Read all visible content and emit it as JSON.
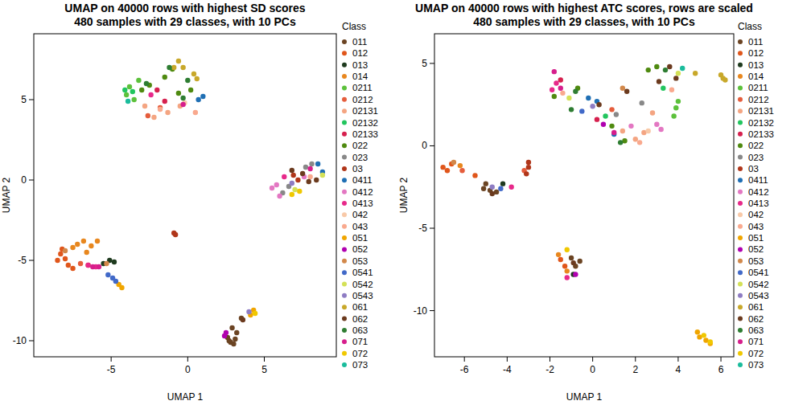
{
  "chart_data": [
    {
      "type": "scatter",
      "title": "UMAP on 40000 rows with highest SD scores",
      "subtitle": "480 samples with 29 classes, with 10 PCs",
      "x_label": "UMAP 1",
      "y_label": "UMAP 2",
      "legend_title": "Class",
      "legend": "right",
      "xlim": [
        -10.05,
        9.7
      ],
      "ylim": [
        -11,
        9.1
      ],
      "xticks": [
        -5,
        0,
        5
      ],
      "yticks": [
        -10,
        -5,
        0,
        5
      ],
      "series": [
        {
          "name": "011",
          "color": "#6B4423",
          "x": [
            2.6,
            2.8,
            3.0,
            3.2,
            2.9,
            3.5,
            2.7,
            3.1
          ],
          "values": [
            -9.8,
            -10.1,
            -10.2,
            -9.5,
            -9.2,
            -8.6,
            -10.0,
            -9.9
          ]
        },
        {
          "name": "012",
          "color": "#E0561B",
          "x": [
            -8.3,
            -8.0,
            -7.8,
            -8.5,
            -7.5,
            -8.2
          ],
          "values": [
            -4.6,
            -4.9,
            -5.3,
            -5.0,
            -5.5,
            -4.3
          ]
        },
        {
          "name": "013",
          "color": "#1E3A1E",
          "x": [
            -5.1,
            -4.8,
            -5.5
          ],
          "values": [
            -5.0,
            -5.1,
            -5.2
          ]
        },
        {
          "name": "014",
          "color": "#E8871E",
          "x": [
            -7.2,
            -6.8,
            -6.3,
            -7.5,
            -5.9,
            -6.6
          ],
          "values": [
            -4.0,
            -3.8,
            -4.1,
            -4.2,
            -3.8,
            -4.5
          ]
        },
        {
          "name": "0211",
          "color": "#5CC13B",
          "x": [
            -4.0,
            -3.8,
            -3.5,
            -3.2
          ],
          "values": [
            5.3,
            5.8,
            5.0,
            6.2
          ]
        },
        {
          "name": "0212",
          "color": "#E55D3C",
          "x": [
            -7.0,
            -6.5,
            -2.6,
            -1.8
          ],
          "values": [
            -5.2,
            -5.3,
            4.0,
            4.5
          ]
        },
        {
          "name": "02131",
          "color": "#F4A582",
          "x": [
            -2.8,
            -2.2,
            -1.3,
            -0.5
          ],
          "values": [
            4.6,
            3.9,
            4.2,
            4.6
          ]
        },
        {
          "name": "02132",
          "color": "#22C55E",
          "x": [
            -3.6,
            -4.1
          ],
          "values": [
            5.5,
            5.6
          ]
        },
        {
          "name": "02133",
          "color": "#D6204E",
          "x": [
            -2.0,
            -1.5
          ],
          "values": [
            5.6,
            4.9
          ]
        },
        {
          "name": "022",
          "color": "#4F8A10",
          "x": [
            -3.0,
            -2.5,
            -1.0,
            -0.6,
            0.2,
            -1.5
          ],
          "values": [
            5.6,
            5.9,
            6.9,
            5.4,
            5.6,
            6.4
          ]
        },
        {
          "name": "023",
          "color": "#888888",
          "x": [
            6.2,
            6.6,
            8.1,
            7.7
          ],
          "values": [
            -0.8,
            -0.4,
            1.0,
            0.8
          ]
        },
        {
          "name": "03",
          "color": "#B0361A",
          "x": [
            -0.9,
            -0.8,
            7.2,
            6.9
          ],
          "values": [
            -3.3,
            -3.4,
            0.0,
            0.3
          ]
        },
        {
          "name": "0411",
          "color": "#1F6FB4",
          "x": [
            1.0,
            0.7,
            8.5,
            8.8
          ],
          "values": [
            5.2,
            5.0,
            1.0,
            0.5
          ]
        },
        {
          "name": "0412",
          "color": "#E377C2",
          "x": [
            5.5,
            5.8,
            6.0,
            7.6
          ],
          "values": [
            -0.5,
            -0.3,
            -1.0,
            0.2
          ]
        },
        {
          "name": "0413",
          "color": "#E7298A",
          "x": [
            -6.5,
            -6.0,
            -2.4,
            6.3
          ],
          "values": [
            -5.3,
            -5.4,
            5.3,
            0.2
          ]
        },
        {
          "name": "042",
          "color": "#F8C9A8",
          "x": [
            -0.2
          ],
          "values": [
            4.8
          ]
        },
        {
          "name": "043",
          "color": "#F9A98E",
          "x": [
            -1.8,
            0.5,
            8.0
          ],
          "values": [
            4.4,
            4.2,
            0.2
          ]
        },
        {
          "name": "051",
          "color": "#F0A500",
          "x": [
            -4.5,
            -4.3,
            4.1,
            4.3
          ],
          "values": [
            -6.5,
            -6.7,
            -8.4,
            -8.1
          ]
        },
        {
          "name": "052",
          "color": "#B000B0",
          "x": [
            2.5,
            2.4
          ],
          "values": [
            -9.5,
            -9.7
          ]
        },
        {
          "name": "053",
          "color": "#D2884A",
          "x": [
            -8.0,
            -5.3
          ],
          "values": [
            -4.4,
            -5.2
          ]
        },
        {
          "name": "0541",
          "color": "#4169C8",
          "x": [
            -4.9,
            -5.2,
            -4.7
          ],
          "values": [
            -6.1,
            -5.9,
            -6.3
          ]
        },
        {
          "name": "0542",
          "color": "#D4E157",
          "x": [
            7.0,
            8.8
          ],
          "values": [
            -0.6,
            0.3
          ]
        },
        {
          "name": "0543",
          "color": "#8E7CC3",
          "x": [
            4.0,
            6.8
          ],
          "values": [
            -8.2,
            -0.2
          ]
        },
        {
          "name": "061",
          "color": "#C8A82A",
          "x": [
            -0.6,
            -0.3,
            0.4,
            0.6,
            -0.9
          ],
          "values": [
            7.4,
            7.0,
            6.6,
            6.3,
            7.0
          ]
        },
        {
          "name": "062",
          "color": "#6B3A1E",
          "x": [
            6.8,
            7.5,
            7.9,
            8.4,
            3.6
          ],
          "values": [
            0.6,
            0.4,
            -0.1,
            0.0,
            -8.7
          ]
        },
        {
          "name": "063",
          "color": "#2E7D32",
          "x": [
            -1.2,
            -2.7,
            0.0,
            -0.3
          ],
          "values": [
            7.0,
            6.0,
            6.2,
            5.1
          ]
        },
        {
          "name": "071",
          "color": "#D61E8C",
          "x": [
            -5.8,
            -6.2,
            -0.3,
            8.0
          ],
          "values": [
            -5.4,
            -5.4,
            4.7,
            0.7
          ]
        },
        {
          "name": "072",
          "color": "#F0C800",
          "x": [
            6.8,
            7.3,
            4.4
          ],
          "values": [
            -0.9,
            -0.7,
            -8.3
          ]
        },
        {
          "name": "073",
          "color": "#1ABC9C",
          "x": [
            -3.9
          ],
          "values": [
            4.9
          ]
        }
      ]
    },
    {
      "type": "scatter",
      "title": "UMAP on 40000 rows with highest ATC scores, rows are scaled",
      "subtitle": "480 samples with 29 classes, with 10 PCs",
      "x_label": "UMAP 1",
      "y_label": "UMAP 2",
      "legend_title": "Class",
      "legend": "right",
      "xlim": [
        -7.4,
        6.6
      ],
      "ylim": [
        -12.8,
        6.8
      ],
      "xticks": [
        -6,
        -4,
        -2,
        0,
        2,
        4,
        6
      ],
      "yticks": [
        -10,
        -5,
        0,
        5
      ],
      "series": [
        {
          "name": "011",
          "color": "#6B4423",
          "x": [
            -4.8,
            -4.5,
            -5.1,
            -0.8,
            -0.6,
            -1.0,
            -5.0
          ],
          "values": [
            -2.7,
            -2.8,
            -2.6,
            -7.3,
            -7.0,
            -6.8,
            -2.3
          ]
        },
        {
          "name": "012",
          "color": "#E0561B",
          "x": [
            -6.6,
            -7.0,
            -6.8,
            -1.5,
            -1.3,
            -5.5
          ],
          "values": [
            -1.1,
            -1.3,
            -1.5,
            -6.9,
            -7.3,
            -1.8
          ]
        },
        {
          "name": "013",
          "color": "#1E3A1E",
          "x": [
            -4.2,
            -0.9
          ],
          "values": [
            -2.3,
            -7.8
          ]
        },
        {
          "name": "014",
          "color": "#E8871E",
          "x": [
            -6.2,
            -1.6,
            -1.2
          ],
          "values": [
            -1.2,
            -6.6,
            -7.6
          ]
        },
        {
          "name": "0211",
          "color": "#5CC13B",
          "x": [
            3.9,
            4.0,
            3.8
          ],
          "values": [
            2.3,
            2.7,
            1.8
          ]
        },
        {
          "name": "0212",
          "color": "#E55D3C",
          "x": [
            -6.1,
            -3.2,
            0.9
          ],
          "values": [
            -1.5,
            -1.5,
            2.2
          ]
        },
        {
          "name": "02131",
          "color": "#F4A582",
          "x": [
            2.4,
            2.0,
            1.4,
            2.8
          ],
          "values": [
            0.8,
            0.4,
            0.9,
            2.0
          ]
        },
        {
          "name": "02132",
          "color": "#22C55E",
          "x": [
            3.3,
            0.6
          ],
          "values": [
            3.5,
            1.8
          ]
        },
        {
          "name": "02133",
          "color": "#D6204E",
          "x": [
            -1.5,
            0.2
          ],
          "values": [
            4.0,
            1.6
          ]
        },
        {
          "name": "022",
          "color": "#4F8A10",
          "x": [
            -0.7,
            0.9,
            1.5,
            3.0,
            2.6,
            -1.8
          ],
          "values": [
            3.5,
            1.2,
            0.3,
            4.8,
            4.6,
            3.0
          ]
        },
        {
          "name": "023",
          "color": "#888888",
          "x": [
            1.1,
            2.3
          ],
          "values": [
            1.9,
            2.6
          ]
        },
        {
          "name": "03",
          "color": "#B0361A",
          "x": [
            -3.0,
            -3.1,
            -3.0
          ],
          "values": [
            -1.3,
            -1.7,
            -1.0
          ]
        },
        {
          "name": "0411",
          "color": "#1F6FB4",
          "x": [
            -0.2,
            0.2,
            1.0
          ],
          "values": [
            2.9,
            2.7,
            0.7
          ]
        },
        {
          "name": "0412",
          "color": "#E377C2",
          "x": [
            1.8,
            3.0,
            3.2
          ],
          "values": [
            1.2,
            1.3,
            1.0
          ]
        },
        {
          "name": "0413",
          "color": "#E7298A",
          "x": [
            -1.7,
            -1.9,
            -3.8,
            -1.2
          ],
          "values": [
            3.8,
            3.4,
            -2.5,
            -8.0
          ]
        },
        {
          "name": "042",
          "color": "#F8C9A8",
          "x": [
            2.6
          ],
          "values": [
            0.9
          ]
        },
        {
          "name": "043",
          "color": "#F9A98E",
          "x": [
            -1.4,
            2.2,
            3.7
          ],
          "values": [
            3.2,
            0.2,
            3.4
          ]
        },
        {
          "name": "051",
          "color": "#F0A500",
          "x": [
            5.0,
            5.3,
            5.5,
            4.9
          ],
          "values": [
            -11.6,
            -11.8,
            -12.0,
            -11.3
          ]
        },
        {
          "name": "052",
          "color": "#B000B0",
          "x": [
            -0.8,
            0.5
          ],
          "values": [
            -7.8,
            1.3
          ]
        },
        {
          "name": "053",
          "color": "#D2884A",
          "x": [
            -6.5,
            1.4
          ],
          "values": [
            -1.0,
            3.5
          ]
        },
        {
          "name": "0541",
          "color": "#4169C8",
          "x": [
            -0.5,
            -4.3
          ],
          "values": [
            2.1,
            -2.6
          ]
        },
        {
          "name": "0542",
          "color": "#D4E157",
          "x": [
            -1.1,
            4.0
          ],
          "values": [
            2.9,
            4.4
          ]
        },
        {
          "name": "0543",
          "color": "#8E7CC3",
          "x": [
            -4.7,
            0.0
          ],
          "values": [
            -2.5,
            2.4
          ]
        },
        {
          "name": "061",
          "color": "#C8A82A",
          "x": [
            6.0,
            6.1,
            6.2,
            4.8
          ],
          "values": [
            4.3,
            4.1,
            4.0,
            4.4
          ]
        },
        {
          "name": "062",
          "color": "#6B3A1E",
          "x": [
            3.6,
            3.9,
            3.1,
            1.6,
            0.3,
            -0.9,
            -4.7
          ],
          "values": [
            4.8,
            4.1,
            3.9,
            3.3,
            2.5,
            -7.1,
            -2.9
          ]
        },
        {
          "name": "063",
          "color": "#2E7D32",
          "x": [
            -0.8,
            1.3,
            3.4,
            -1.0
          ],
          "values": [
            3.3,
            0.2,
            4.6,
            2.2
          ]
        },
        {
          "name": "071",
          "color": "#D61E8C",
          "x": [
            -1.8,
            -1.5,
            1.0
          ],
          "values": [
            4.5,
            3.5,
            0.8
          ]
        },
        {
          "name": "072",
          "color": "#F0C800",
          "x": [
            5.2,
            5.5,
            -1.2
          ],
          "values": [
            -11.5,
            -11.9,
            -6.3
          ]
        },
        {
          "name": "073",
          "color": "#1ABC9C",
          "x": [
            4.2
          ],
          "values": [
            4.7
          ]
        }
      ]
    }
  ]
}
